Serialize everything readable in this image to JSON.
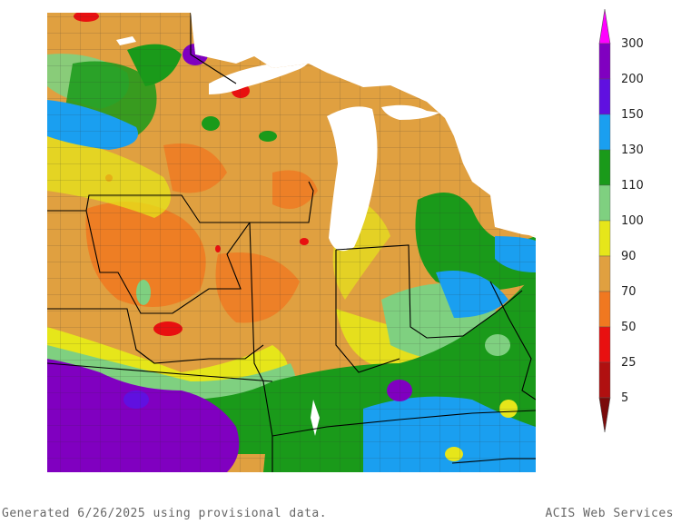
{
  "legend": {
    "labels": [
      "300",
      "200",
      "150",
      "130",
      "110",
      "100",
      "90",
      "70",
      "50",
      "25",
      "5"
    ],
    "colors": [
      "#ff00ff",
      "#8000c0",
      "#6010e0",
      "#1a9ff0",
      "#1a9a1a",
      "#7fd080",
      "#e6e61a",
      "#e0a040",
      "#f07820",
      "#e81010",
      "#b01010",
      "#7a0a0a"
    ]
  },
  "footer": {
    "generated": "Generated 6/26/2025 using provisional data.",
    "credit": "ACIS Web Services"
  },
  "map_colors": {
    "lake": "#ffffff",
    "border_state": "#000000",
    "border_county": "#303030"
  }
}
